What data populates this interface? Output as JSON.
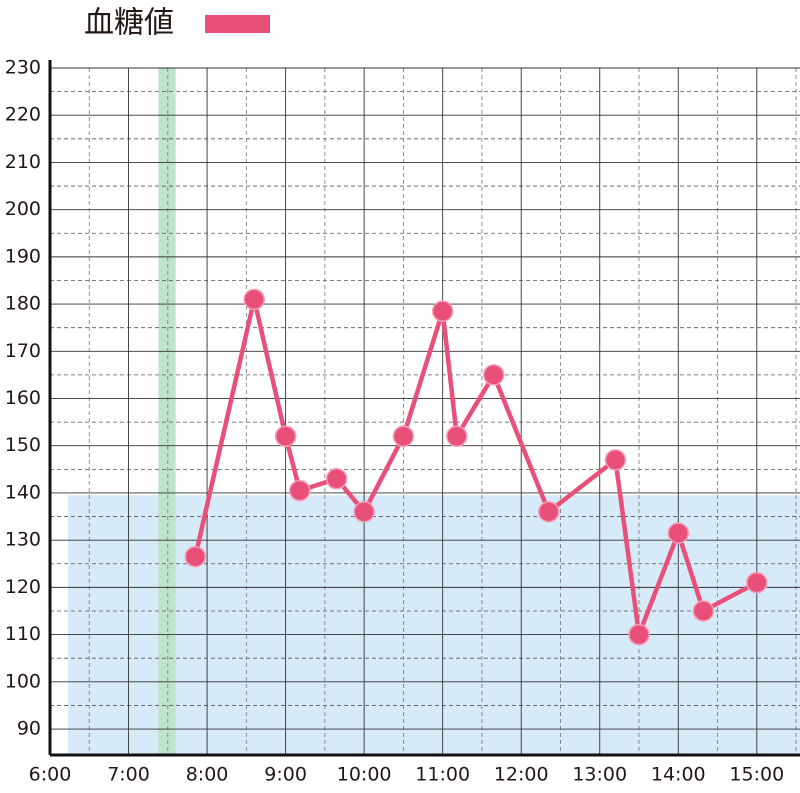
{
  "chart_data": {
    "type": "line",
    "x": [
      7.85,
      8.6,
      9.0,
      9.18,
      9.65,
      10.0,
      10.5,
      11.0,
      11.18,
      11.65,
      12.35,
      13.2,
      13.5,
      14.0,
      14.32,
      15.0
    ],
    "series": [
      {
        "name": "血糖値",
        "color": "#e8507a",
        "values": [
          126.5,
          181,
          152,
          140.5,
          143,
          136,
          152,
          178.5,
          152,
          165,
          136,
          147,
          110,
          131.5,
          115,
          121
        ]
      }
    ],
    "xlim": [
      6,
      15.55
    ],
    "xticks": [
      {
        "value": 6,
        "label": "6:00"
      },
      {
        "value": 7,
        "label": "7:00"
      },
      {
        "value": 8,
        "label": "8:00"
      },
      {
        "value": 9,
        "label": "9:00"
      },
      {
        "value": 10,
        "label": "10:00"
      },
      {
        "value": 11,
        "label": "11:00"
      },
      {
        "value": 12,
        "label": "12:00"
      },
      {
        "value": 13,
        "label": "13:00"
      },
      {
        "value": 14,
        "label": "14:00"
      },
      {
        "value": 15,
        "label": "15:00"
      }
    ],
    "xminorticks": [
      6.5,
      7.5,
      8.5,
      9.5,
      10.5,
      11.5,
      12.5,
      13.5,
      14.5,
      15.5
    ],
    "ylim": [
      84.5,
      230
    ],
    "yticks": [
      90,
      100,
      110,
      120,
      130,
      140,
      150,
      160,
      170,
      180,
      190,
      200,
      210,
      220,
      230
    ],
    "yminorticks": [
      95,
      105,
      115,
      125,
      135,
      145,
      155,
      165,
      175,
      185,
      195,
      205,
      215,
      225
    ],
    "grid": true,
    "legend": "top-left",
    "bands": [
      {
        "x": [
          6.23,
          15.55
        ],
        "y": [
          84.5,
          139.5
        ],
        "color": "#d6eaf8"
      },
      {
        "x": [
          7.38,
          7.6
        ],
        "y": [
          84.5,
          230
        ],
        "color": "#bfe3cd"
      }
    ]
  }
}
